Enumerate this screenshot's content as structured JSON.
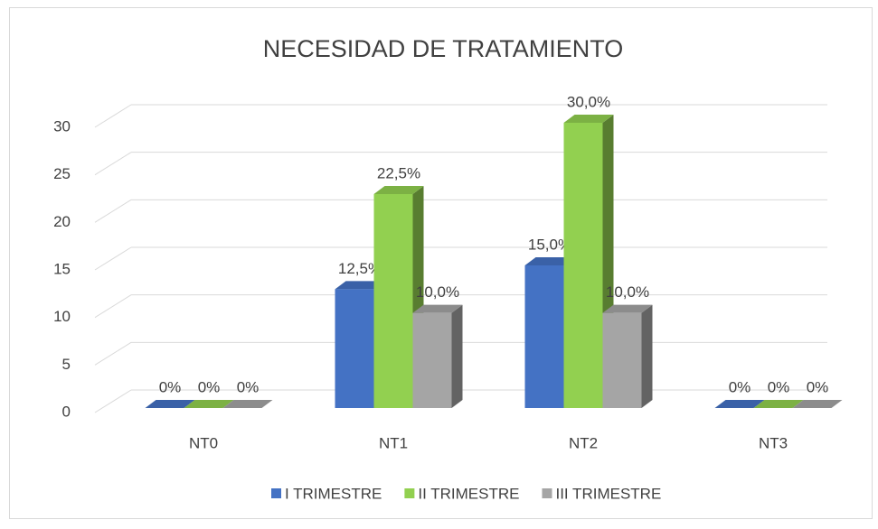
{
  "chart_data": {
    "type": "bar3d",
    "title": "NECESIDAD DE TRATAMIENTO",
    "categories": [
      "NT0",
      "NT1",
      "NT2",
      "NT3"
    ],
    "series": [
      {
        "name": "I TRIMESTRE",
        "color": "#4472c4",
        "values": [
          0,
          12.5,
          15,
          0
        ],
        "value_labels": [
          "0%",
          "12,5%",
          "15,0%",
          "0%"
        ]
      },
      {
        "name": "II TRIMESTRE",
        "color": "#92d050",
        "values": [
          0,
          22.5,
          30,
          0
        ],
        "value_labels": [
          "0%",
          "22,5%",
          "30,0%",
          "0%"
        ]
      },
      {
        "name": "III TRIMESTRE",
        "color": "#a5a5a5",
        "values": [
          0,
          10,
          10,
          0
        ],
        "value_labels": [
          "0%",
          "10,0%",
          "10,0%",
          "0%"
        ]
      }
    ],
    "ylim": [
      0,
      30
    ],
    "yticks": [
      0,
      5,
      10,
      15,
      20,
      25,
      30
    ],
    "grid": true,
    "legend": "bottom"
  }
}
